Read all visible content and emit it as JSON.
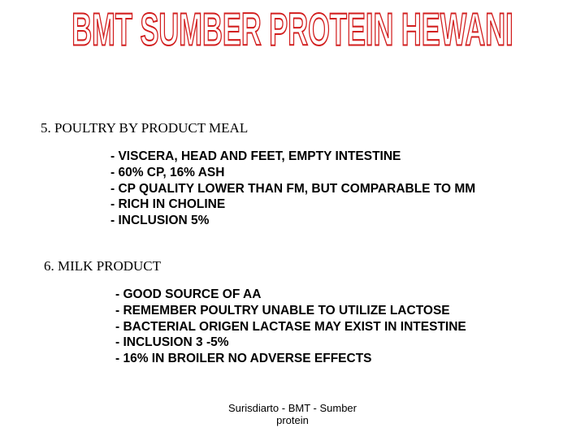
{
  "title": "BMT SUMBER PROTEIN HEWANI",
  "title_color_stroke": "#d21e1e",
  "title_color_fill": "#ffffff",
  "title_fontsize": 42,
  "background_color": "#ffffff",
  "section1": {
    "heading": "5. POULTRY BY PRODUCT MEAL",
    "heading_fontsize": 17,
    "bullets": [
      "- VISCERA, HEAD AND FEET, EMPTY INTESTINE",
      "- 60% CP, 16% ASH",
      "- CP QUALITY LOWER THAN FM, BUT COMPARABLE TO MM",
      "- RICH IN CHOLINE",
      "- INCLUSION 5%"
    ],
    "bullet_fontsize": 15.5
  },
  "section2": {
    "heading": "6. MILK PRODUCT",
    "heading_fontsize": 17,
    "bullets": [
      "- GOOD SOURCE OF AA",
      "- REMEMBER POULTRY UNABLE TO UTILIZE LACTOSE",
      "- BACTERIAL ORIGEN LACTASE MAY EXIST IN INTESTINE",
      "- INCLUSION 3 -5%",
      "- 16% IN BROILER NO ADVERSE EFFECTS"
    ],
    "bullet_fontsize": 15.5
  },
  "footer": {
    "line1": "Surisdiarto - BMT - Sumber",
    "line2": "protein",
    "fontsize": 13
  }
}
